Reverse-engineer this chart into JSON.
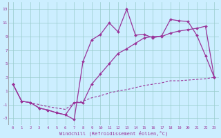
{
  "xlabel": "Windchill (Refroidissement éolien,°C)",
  "bg_color": "#cceeff",
  "line_color": "#993399",
  "grid_color": "#99cccc",
  "xlim": [
    -0.5,
    23.5
  ],
  "ylim": [
    -4,
    14
  ],
  "yticks": [
    -3,
    -1,
    1,
    3,
    5,
    7,
    9,
    11,
    13
  ],
  "xticks": [
    0,
    1,
    2,
    3,
    4,
    5,
    6,
    7,
    8,
    9,
    10,
    11,
    12,
    13,
    14,
    15,
    16,
    17,
    18,
    19,
    20,
    21,
    22,
    23
  ],
  "line1_x": [
    0,
    1,
    2,
    3,
    4,
    5,
    6,
    7,
    8,
    9,
    10,
    11,
    12,
    13,
    14,
    15,
    16,
    17,
    18,
    19,
    20,
    21,
    22,
    23
  ],
  "line1_y": [
    2,
    -0.5,
    -0.7,
    -1.5,
    -1.8,
    -2.2,
    -2.5,
    -3.2,
    5.3,
    8.5,
    9.3,
    11.0,
    9.7,
    13.0,
    9.2,
    9.3,
    8.8,
    9.1,
    11.5,
    11.3,
    11.2,
    9.2,
    6.2,
    3.0
  ],
  "line2_x": [
    0,
    1,
    2,
    3,
    4,
    5,
    6,
    7,
    8,
    9,
    10,
    11,
    12,
    13,
    14,
    15,
    16,
    17,
    18,
    19,
    20,
    21,
    22,
    23
  ],
  "line2_y": [
    2,
    -0.5,
    -0.7,
    -1.5,
    -1.8,
    -2.2,
    -2.5,
    -0.7,
    -0.7,
    2.0,
    3.5,
    5.0,
    6.5,
    7.2,
    8.0,
    8.8,
    9.0,
    9.0,
    9.5,
    9.8,
    10.0,
    10.2,
    10.5,
    3.0
  ],
  "line3_x": [
    0,
    1,
    2,
    3,
    4,
    5,
    6,
    7,
    8,
    9,
    10,
    11,
    12,
    13,
    14,
    15,
    16,
    17,
    18,
    19,
    20,
    21,
    22,
    23
  ],
  "line3_y": [
    2,
    -0.5,
    -0.7,
    -1.0,
    -1.3,
    -1.5,
    -1.7,
    -0.7,
    -0.5,
    0.0,
    0.3,
    0.7,
    1.0,
    1.2,
    1.5,
    1.8,
    2.0,
    2.2,
    2.5,
    2.5,
    2.6,
    2.7,
    2.8,
    3.0
  ]
}
